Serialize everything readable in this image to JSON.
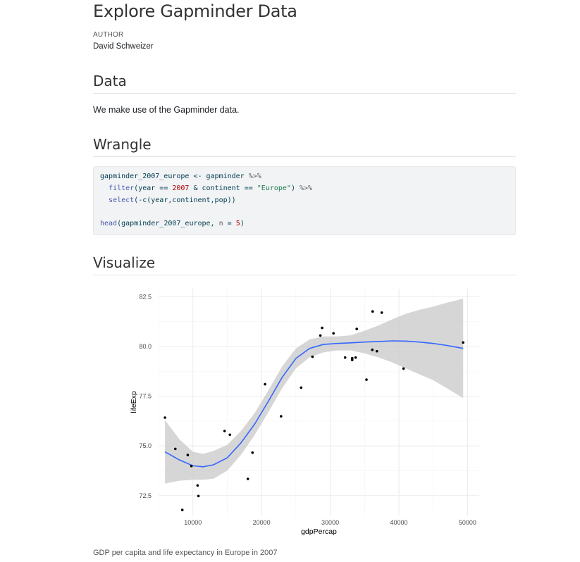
{
  "document": {
    "title": "Explore Gapminder Data",
    "author_label": "AUTHOR",
    "author_name": "David Schweizer"
  },
  "sections": {
    "data": {
      "heading": "Data",
      "text": "We make use of the Gapminder data."
    },
    "wrangle": {
      "heading": "Wrangle"
    },
    "visualize": {
      "heading": "Visualize"
    }
  },
  "code": {
    "lines": [
      [
        {
          "t": "gapminder_2007_europe <- gapminder ",
          "c": ""
        },
        {
          "t": "%>%",
          "c": "op"
        }
      ],
      [
        {
          "t": "  ",
          "c": ""
        },
        {
          "t": "filter",
          "c": "fn"
        },
        {
          "t": "(year == ",
          "c": ""
        },
        {
          "t": "2007",
          "c": "num"
        },
        {
          "t": " & continent == ",
          "c": ""
        },
        {
          "t": "\"Europe\"",
          "c": "str"
        },
        {
          "t": ") ",
          "c": ""
        },
        {
          "t": "%>%",
          "c": "op"
        }
      ],
      [
        {
          "t": "  ",
          "c": ""
        },
        {
          "t": "select",
          "c": "fn"
        },
        {
          "t": "(-c(year,continent,pop))",
          "c": ""
        }
      ],
      [
        {
          "t": "",
          "c": ""
        }
      ],
      [
        {
          "t": "head",
          "c": "fn"
        },
        {
          "t": "(gapminder_2007_europe, ",
          "c": ""
        },
        {
          "t": "n",
          "c": "op"
        },
        {
          "t": " = ",
          "c": ""
        },
        {
          "t": "5",
          "c": "num"
        },
        {
          "t": ")",
          "c": ""
        }
      ]
    ]
  },
  "caption": "GDP per capita and life expectancy in Europe in 2007",
  "colors": {
    "smooth_line": "#3366ff",
    "ribbon": "#c8c8c8",
    "points": "#000000",
    "grid": "#ebebeb"
  },
  "chart_data": {
    "type": "scatter",
    "title": "",
    "xlabel": "gdpPercap",
    "ylabel": "lifeExp",
    "xlim": [
      5000,
      51700
    ],
    "ylim": [
      71.5,
      82.9
    ],
    "x_ticks": [
      10000,
      20000,
      30000,
      40000,
      50000
    ],
    "x_tick_labels": [
      "10000",
      "20000",
      "30000",
      "40000",
      "50000"
    ],
    "y_ticks": [
      72.5,
      75.0,
      77.5,
      80.0,
      82.5
    ],
    "y_tick_labels": [
      "72.5",
      "75.0",
      "77.5",
      "80.0",
      "82.5"
    ],
    "grid": true,
    "points": [
      {
        "x": 5937,
        "y": 76.42
      },
      {
        "x": 7446,
        "y": 74.85
      },
      {
        "x": 8458,
        "y": 71.78
      },
      {
        "x": 9253,
        "y": 74.54
      },
      {
        "x": 9787,
        "y": 73.99
      },
      {
        "x": 10681,
        "y": 73.01
      },
      {
        "x": 10809,
        "y": 72.48
      },
      {
        "x": 14619,
        "y": 75.75
      },
      {
        "x": 15390,
        "y": 75.56
      },
      {
        "x": 18009,
        "y": 73.34
      },
      {
        "x": 18678,
        "y": 74.66
      },
      {
        "x": 20510,
        "y": 78.1
      },
      {
        "x": 22834,
        "y": 76.49
      },
      {
        "x": 25768,
        "y": 77.93
      },
      {
        "x": 27412,
        "y": 79.48
      },
      {
        "x": 28570,
        "y": 80.55
      },
      {
        "x": 28822,
        "y": 80.93
      },
      {
        "x": 30470,
        "y": 80.66
      },
      {
        "x": 32170,
        "y": 79.44
      },
      {
        "x": 33207,
        "y": 79.41
      },
      {
        "x": 33204,
        "y": 79.32
      },
      {
        "x": 33693,
        "y": 79.44
      },
      {
        "x": 33860,
        "y": 80.88
      },
      {
        "x": 35278,
        "y": 78.33
      },
      {
        "x": 36126,
        "y": 79.83
      },
      {
        "x": 36181,
        "y": 81.76
      },
      {
        "x": 36798,
        "y": 79.76
      },
      {
        "x": 37506,
        "y": 81.7
      },
      {
        "x": 40676,
        "y": 78.89
      },
      {
        "x": 49357,
        "y": 80.2
      }
    ],
    "smooth": {
      "x": [
        5937,
        8000,
        10000,
        11500,
        13000,
        15000,
        17000,
        19000,
        21000,
        23000,
        25000,
        27000,
        29000,
        31000,
        33000,
        35000,
        37000,
        39000,
        41000,
        43000,
        45000,
        47000,
        49357
      ],
      "y": [
        74.7,
        74.3,
        74.0,
        73.95,
        74.05,
        74.4,
        75.15,
        76.1,
        77.25,
        78.45,
        79.4,
        79.9,
        80.1,
        80.15,
        80.18,
        80.22,
        80.25,
        80.28,
        80.27,
        80.22,
        80.15,
        80.05,
        79.9
      ],
      "lower": [
        73.1,
        73.25,
        73.3,
        73.3,
        73.35,
        73.75,
        74.55,
        75.55,
        76.7,
        77.9,
        78.9,
        79.45,
        79.7,
        79.8,
        79.8,
        79.65,
        79.45,
        79.2,
        78.9,
        78.6,
        78.3,
        77.9,
        77.4
      ],
      "upper": [
        76.3,
        75.35,
        74.7,
        74.6,
        74.75,
        75.05,
        75.75,
        76.65,
        77.8,
        79.0,
        79.9,
        80.35,
        80.5,
        80.5,
        80.56,
        80.79,
        81.05,
        81.36,
        81.64,
        81.84,
        82.0,
        82.2,
        82.4
      ]
    }
  }
}
